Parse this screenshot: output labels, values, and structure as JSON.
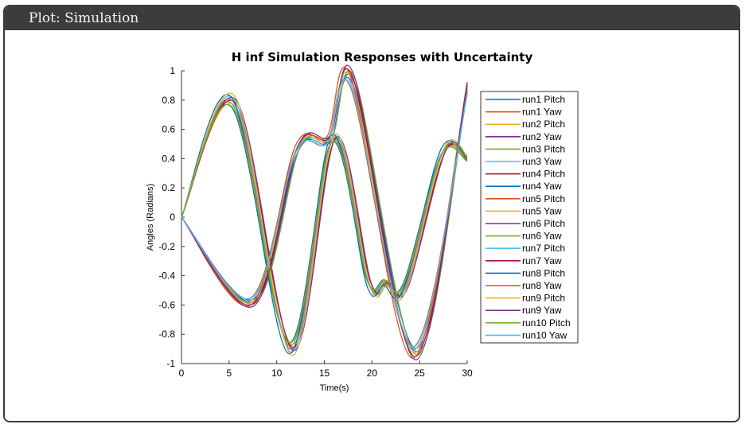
{
  "window": {
    "title": "Plot: Simulation"
  },
  "chart_data": {
    "type": "line",
    "title": "H inf Simulation Responses with Uncertainty",
    "xlabel": "Time(s)",
    "ylabel": "Angles (Radians)",
    "xlim": [
      0,
      30
    ],
    "ylim": [
      -1,
      1
    ],
    "xticks": [
      0,
      5,
      10,
      15,
      20,
      25,
      30
    ],
    "yticks": [
      1,
      0.8,
      0.6,
      0.4,
      0.2,
      0,
      -0.2,
      -0.4,
      -0.6,
      -0.8,
      -1
    ],
    "legend_position": "outside-right",
    "colors": [
      "#0072BD",
      "#D95319",
      "#EDB120",
      "#7E2F8E",
      "#77AC30",
      "#4DBEEE",
      "#A2142F"
    ],
    "pitch_nominal": [
      [
        0,
        0
      ],
      [
        5.5,
        0.79
      ],
      [
        11.5,
        -0.9
      ],
      [
        16,
        0.54
      ],
      [
        19.7,
        -0.45
      ],
      [
        21.5,
        -0.45
      ],
      [
        23.5,
        -0.48
      ],
      [
        27.5,
        0.45
      ],
      [
        30,
        0.4
      ]
    ],
    "yaw_nominal": [
      [
        0,
        0
      ],
      [
        7.5,
        -0.58
      ],
      [
        12.2,
        0.47
      ],
      [
        15.5,
        0.53
      ],
      [
        18,
        0.93
      ],
      [
        24.5,
        -0.93
      ],
      [
        30,
        0.88
      ]
    ],
    "series": [
      {
        "name": "run1 Pitch"
      },
      {
        "name": "run1 Yaw"
      },
      {
        "name": "run2 Pitch"
      },
      {
        "name": "run2 Yaw"
      },
      {
        "name": "run3 Pitch"
      },
      {
        "name": "run3 Yaw"
      },
      {
        "name": "run4 Pitch"
      },
      {
        "name": "run4 Yaw"
      },
      {
        "name": "run5 Pitch"
      },
      {
        "name": "run5 Yaw"
      },
      {
        "name": "run6 Pitch"
      },
      {
        "name": "run6 Yaw"
      },
      {
        "name": "run7 Pitch"
      },
      {
        "name": "run7 Yaw"
      },
      {
        "name": "run8 Pitch"
      },
      {
        "name": "run8 Yaw"
      },
      {
        "name": "run9 Pitch"
      },
      {
        "name": "run9 Yaw"
      },
      {
        "name": "run10 Pitch"
      },
      {
        "name": "run10 Yaw"
      }
    ]
  }
}
